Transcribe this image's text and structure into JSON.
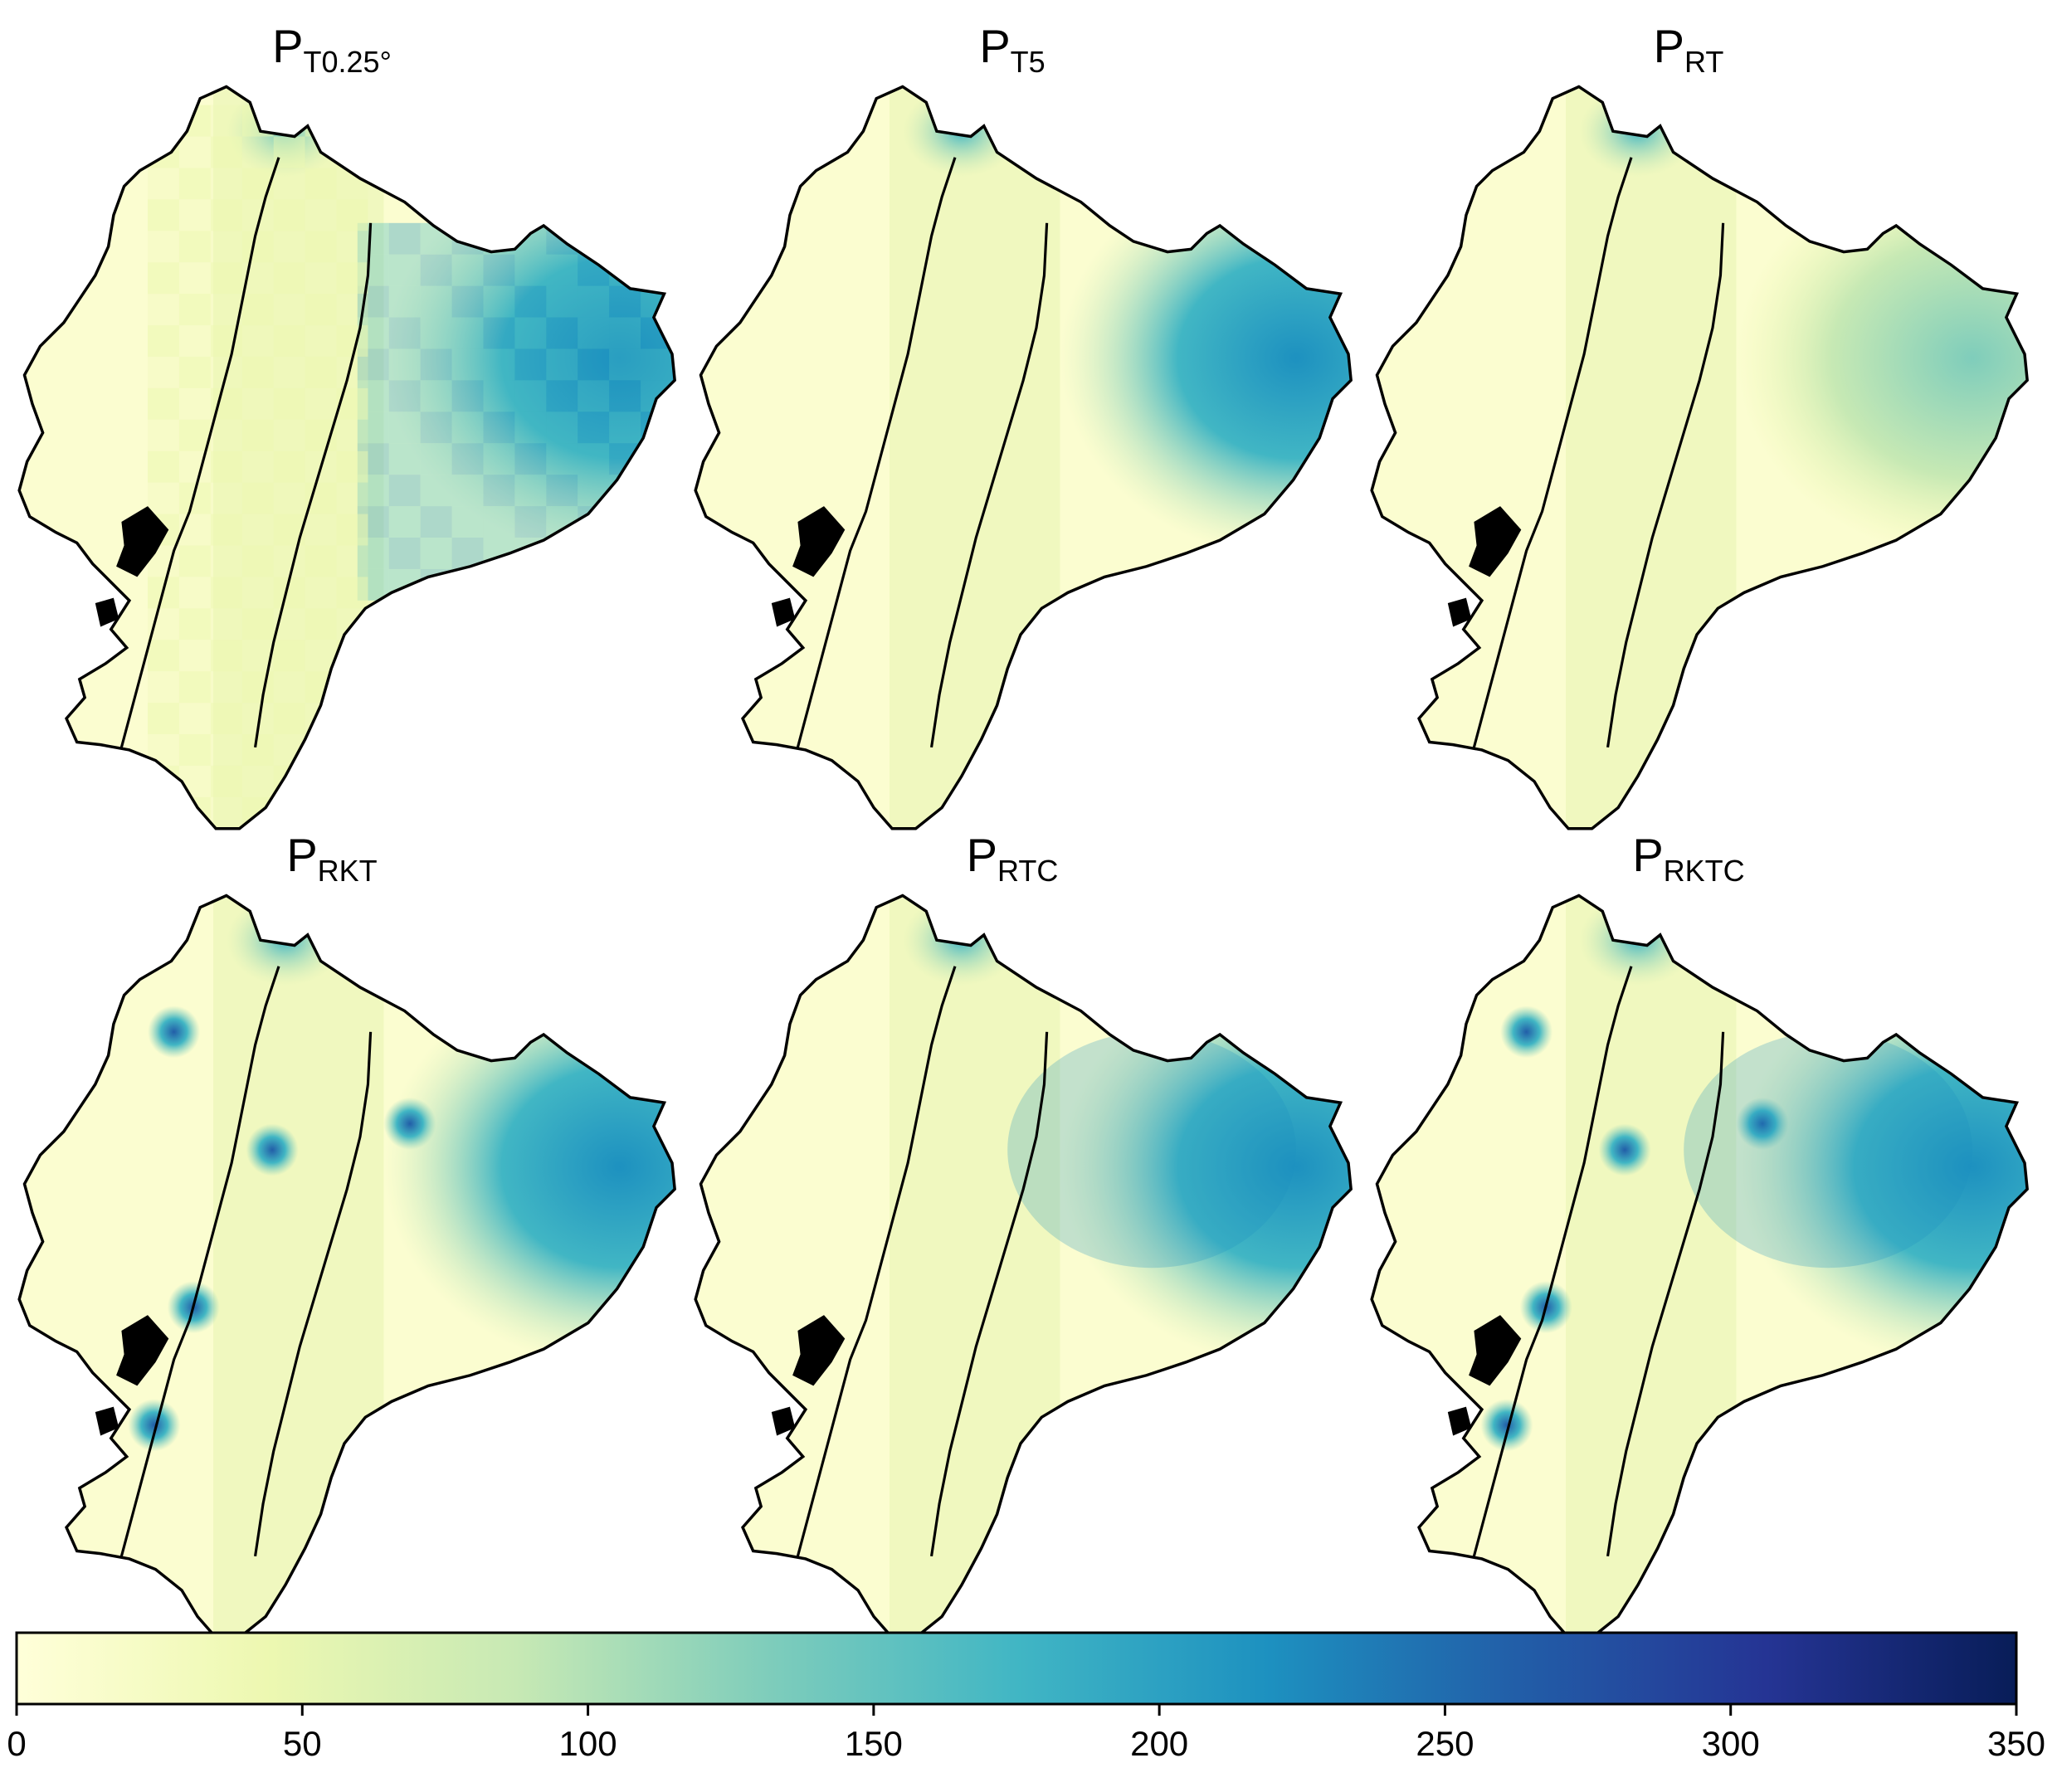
{
  "panels": [
    {
      "main": "P",
      "sub": "T0.25°",
      "style": "coarse"
    },
    {
      "main": "P",
      "sub": "T5",
      "style": "smooth"
    },
    {
      "main": "P",
      "sub": "RT",
      "style": "faint"
    },
    {
      "main": "P",
      "sub": "RKT",
      "style": "spotty"
    },
    {
      "main": "P",
      "sub": "RTC",
      "style": "smooth-strong"
    },
    {
      "main": "P",
      "sub": "RKTC",
      "style": "spotty-strong"
    }
  ],
  "colorbar": {
    "min": 0,
    "max": 350,
    "ticks": [
      "0",
      "50",
      "100",
      "150",
      "200",
      "250",
      "300",
      "350"
    ],
    "colors": [
      "#ffffd9",
      "#edf8b1",
      "#c7e9b4",
      "#7fcdbb",
      "#41b6c4",
      "#1d91c0",
      "#225ea8",
      "#253494",
      "#081d58"
    ]
  }
}
